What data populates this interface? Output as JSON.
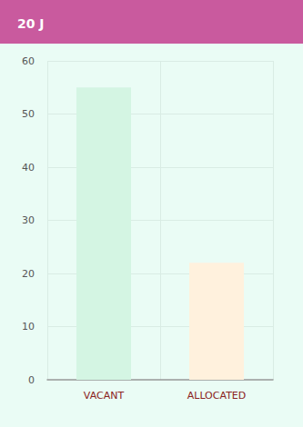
{
  "chart_data": {
    "type": "bar",
    "title": "20 J",
    "categories": [
      "VACANT",
      "ALLOCATED"
    ],
    "values": [
      55,
      22
    ],
    "colors": [
      "#d4f5e3",
      "#fff1dd"
    ],
    "ylim": [
      0,
      60
    ],
    "yticks": [
      0,
      10,
      20,
      30,
      40,
      50,
      60
    ],
    "grid": true
  }
}
